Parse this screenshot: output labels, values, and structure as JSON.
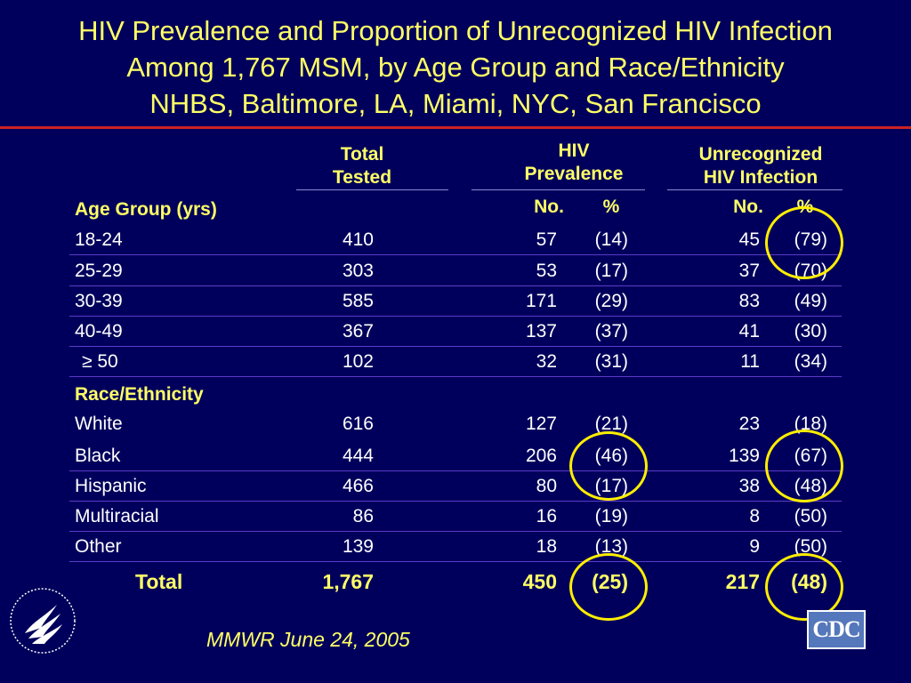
{
  "title": {
    "line1": "HIV Prevalence and Proportion of Unrecognized HIV Infection",
    "line2": "Among 1,767 MSM, by Age Group and Race/Ethnicity",
    "line3": "NHBS, Baltimore, LA, Miami, NYC, San Francisco"
  },
  "headers": {
    "total_line1": "Total",
    "total_line2": "Tested",
    "hiv_line1": "HIV",
    "hiv_line2": "Prevalence",
    "unrec_line1": "Unrecognized",
    "unrec_line2": "HIV Infection",
    "no": "No.",
    "pct": "%"
  },
  "age_section": {
    "label": "Age Group (yrs)",
    "rows": [
      {
        "label": "18-24",
        "total": "410",
        "hiv_no": "57",
        "hiv_pct": "(14)",
        "un_no": "45",
        "un_pct": "(79)"
      },
      {
        "label": "25-29",
        "total": "303",
        "hiv_no": "53",
        "hiv_pct": "(17)",
        "un_no": "37",
        "un_pct": "(70)"
      },
      {
        "label": "30-39",
        "total": "585",
        "hiv_no": "171",
        "hiv_pct": "(29)",
        "un_no": "83",
        "un_pct": "(49)"
      },
      {
        "label": "40-49",
        "total": "367",
        "hiv_no": "137",
        "hiv_pct": "(37)",
        "un_no": "41",
        "un_pct": "(30)"
      },
      {
        "label": "≥ 50",
        "total": "102",
        "hiv_no": "32",
        "hiv_pct": "(31)",
        "un_no": "11",
        "un_pct": "(34)"
      }
    ]
  },
  "race_section": {
    "label": "Race/Ethnicity",
    "rows": [
      {
        "label": "White",
        "total": "616",
        "hiv_no": "127",
        "hiv_pct": "(21)",
        "un_no": "23",
        "un_pct": "(18)"
      },
      {
        "label": "Black",
        "total": "444",
        "hiv_no": "206",
        "hiv_pct": "(46)",
        "un_no": "139",
        "un_pct": "(67)"
      },
      {
        "label": "Hispanic",
        "total": "466",
        "hiv_no": "80",
        "hiv_pct": "(17)",
        "un_no": "38",
        "un_pct": "(48)"
      },
      {
        "label": "Multiracial",
        "total": "86",
        "hiv_no": "16",
        "hiv_pct": "(19)",
        "un_no": "8",
        "un_pct": "(50)"
      },
      {
        "label": "Other",
        "total": "139",
        "hiv_no": "18",
        "hiv_pct": "(13)",
        "un_no": "9",
        "un_pct": "(50)"
      }
    ]
  },
  "total_row": {
    "label": "Total",
    "total": "1,767",
    "hiv_no": "450",
    "hiv_pct": "(25)",
    "un_no": "217",
    "un_pct": "(48)"
  },
  "source": "MMWR June 24, 2005",
  "logos": {
    "cdc_text": "CDC",
    "hhs_icon": "hhs-eagle-icon"
  },
  "colors": {
    "background": "#00005c",
    "title_text": "#ffff66",
    "divider": "#cc2222",
    "highlight_circle": "#ffee00"
  }
}
